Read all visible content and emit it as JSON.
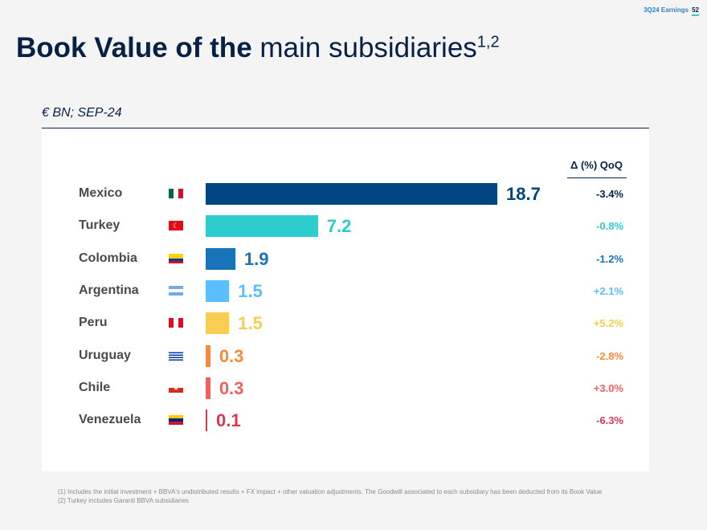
{
  "header": {
    "label": "3Q24 Earnings",
    "page_number": "52"
  },
  "title": {
    "bold": "Book Value of the",
    "regular": "main subsidiaries",
    "superscript": "1,2"
  },
  "subtitle": "€ BN; SEP-24",
  "qoq_header": "Δ (%) QoQ",
  "footnotes": [
    "(1) Includes the initial investment + BBVA's undistributed results + FX impact + other valuation adjustments. The Goodwill associated to each subsidiary has been deducted from its Book Value",
    "(2) Turkey includes Garanti BBVA subsidiaries"
  ],
  "chart_data": {
    "type": "bar",
    "orientation": "horizontal",
    "title": "Book Value of the main subsidiaries",
    "unit": "€ BN; SEP-24",
    "categories": [
      "Mexico",
      "Turkey",
      "Colombia",
      "Argentina",
      "Peru",
      "Uruguay",
      "Chile",
      "Venezuela"
    ],
    "values": [
      18.7,
      7.2,
      1.9,
      1.5,
      1.5,
      0.3,
      0.3,
      0.1
    ],
    "value_labels": [
      "18.7",
      "7.2",
      "1.9",
      "1.5",
      "1.5",
      "0.3",
      "0.3",
      "0.1"
    ],
    "qoq_change": [
      "-3.4%",
      "-0.8%",
      "-1.2%",
      "+2.1%",
      "+5.2%",
      "-2.8%",
      "+3.0%",
      "-6.3%"
    ],
    "colors": [
      "#004481",
      "#2dcccd",
      "#1973b8",
      "#5bbeff",
      "#f8cd51",
      "#f7893b",
      "#f35e61",
      "#da3851"
    ],
    "flag_icons": [
      "mexico-flag-icon",
      "turkey-flag-icon",
      "colombia-flag-icon",
      "argentina-flag-icon",
      "peru-flag-icon",
      "uruguay-flag-icon",
      "chile-flag-icon",
      "venezuela-flag-icon"
    ],
    "xlim": [
      0,
      18.7
    ]
  }
}
